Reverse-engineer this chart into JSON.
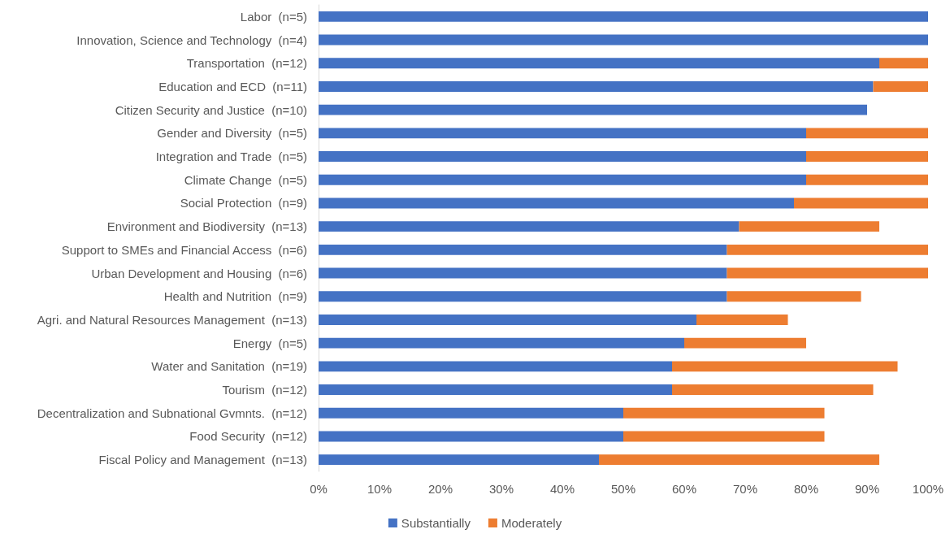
{
  "chart_data": {
    "type": "bar",
    "orientation": "horizontal",
    "stacked": true,
    "legend": "bottom",
    "grid": false,
    "categories": [
      "Labor  (n=5)",
      "Innovation, Science and Technology  (n=4)",
      "Transportation  (n=12)",
      "Education and ECD  (n=11)",
      "Citizen Security and Justice  (n=10)",
      "Gender and Diversity  (n=5)",
      "Integration and Trade  (n=5)",
      "Climate Change  (n=5)",
      "Social Protection  (n=9)",
      "Environment and Biodiversity  (n=13)",
      "Support to SMEs and Financial Access  (n=6)",
      "Urban Development and Housing  (n=6)",
      "Health and Nutrition  (n=9)",
      "Agri. and Natural Resources Management  (n=13)",
      "Energy  (n=5)",
      "Water and Sanitation  (n=19)",
      "Tourism  (n=12)",
      "Decentralization and Subnational Gvmnts.  (n=12)",
      "Food Security  (n=12)",
      "Fiscal Policy and Management  (n=13)"
    ],
    "series": [
      {
        "name": "Substantially",
        "color": "#4472c4",
        "values": [
          100,
          100,
          92,
          91,
          90,
          80,
          80,
          80,
          78,
          69,
          67,
          67,
          67,
          62,
          60,
          58,
          58,
          50,
          50,
          46
        ]
      },
      {
        "name": "Moderately",
        "color": "#ed7d31",
        "values": [
          0,
          0,
          8,
          9,
          0,
          20,
          20,
          20,
          22,
          23,
          33,
          33,
          22,
          15,
          20,
          37,
          33,
          33,
          33,
          46
        ]
      }
    ],
    "xlim": [
      0,
      100
    ],
    "xticks": [
      {
        "value": 0,
        "label": "0%"
      },
      {
        "value": 10,
        "label": "10%"
      },
      {
        "value": 20,
        "label": "20%"
      },
      {
        "value": 30,
        "label": "30%"
      },
      {
        "value": 40,
        "label": "40%"
      },
      {
        "value": 50,
        "label": "50%"
      },
      {
        "value": 60,
        "label": "60%"
      },
      {
        "value": 70,
        "label": "70%"
      },
      {
        "value": 80,
        "label": "80%"
      },
      {
        "value": 90,
        "label": "90%"
      },
      {
        "value": 100,
        "label": "100%"
      }
    ]
  }
}
